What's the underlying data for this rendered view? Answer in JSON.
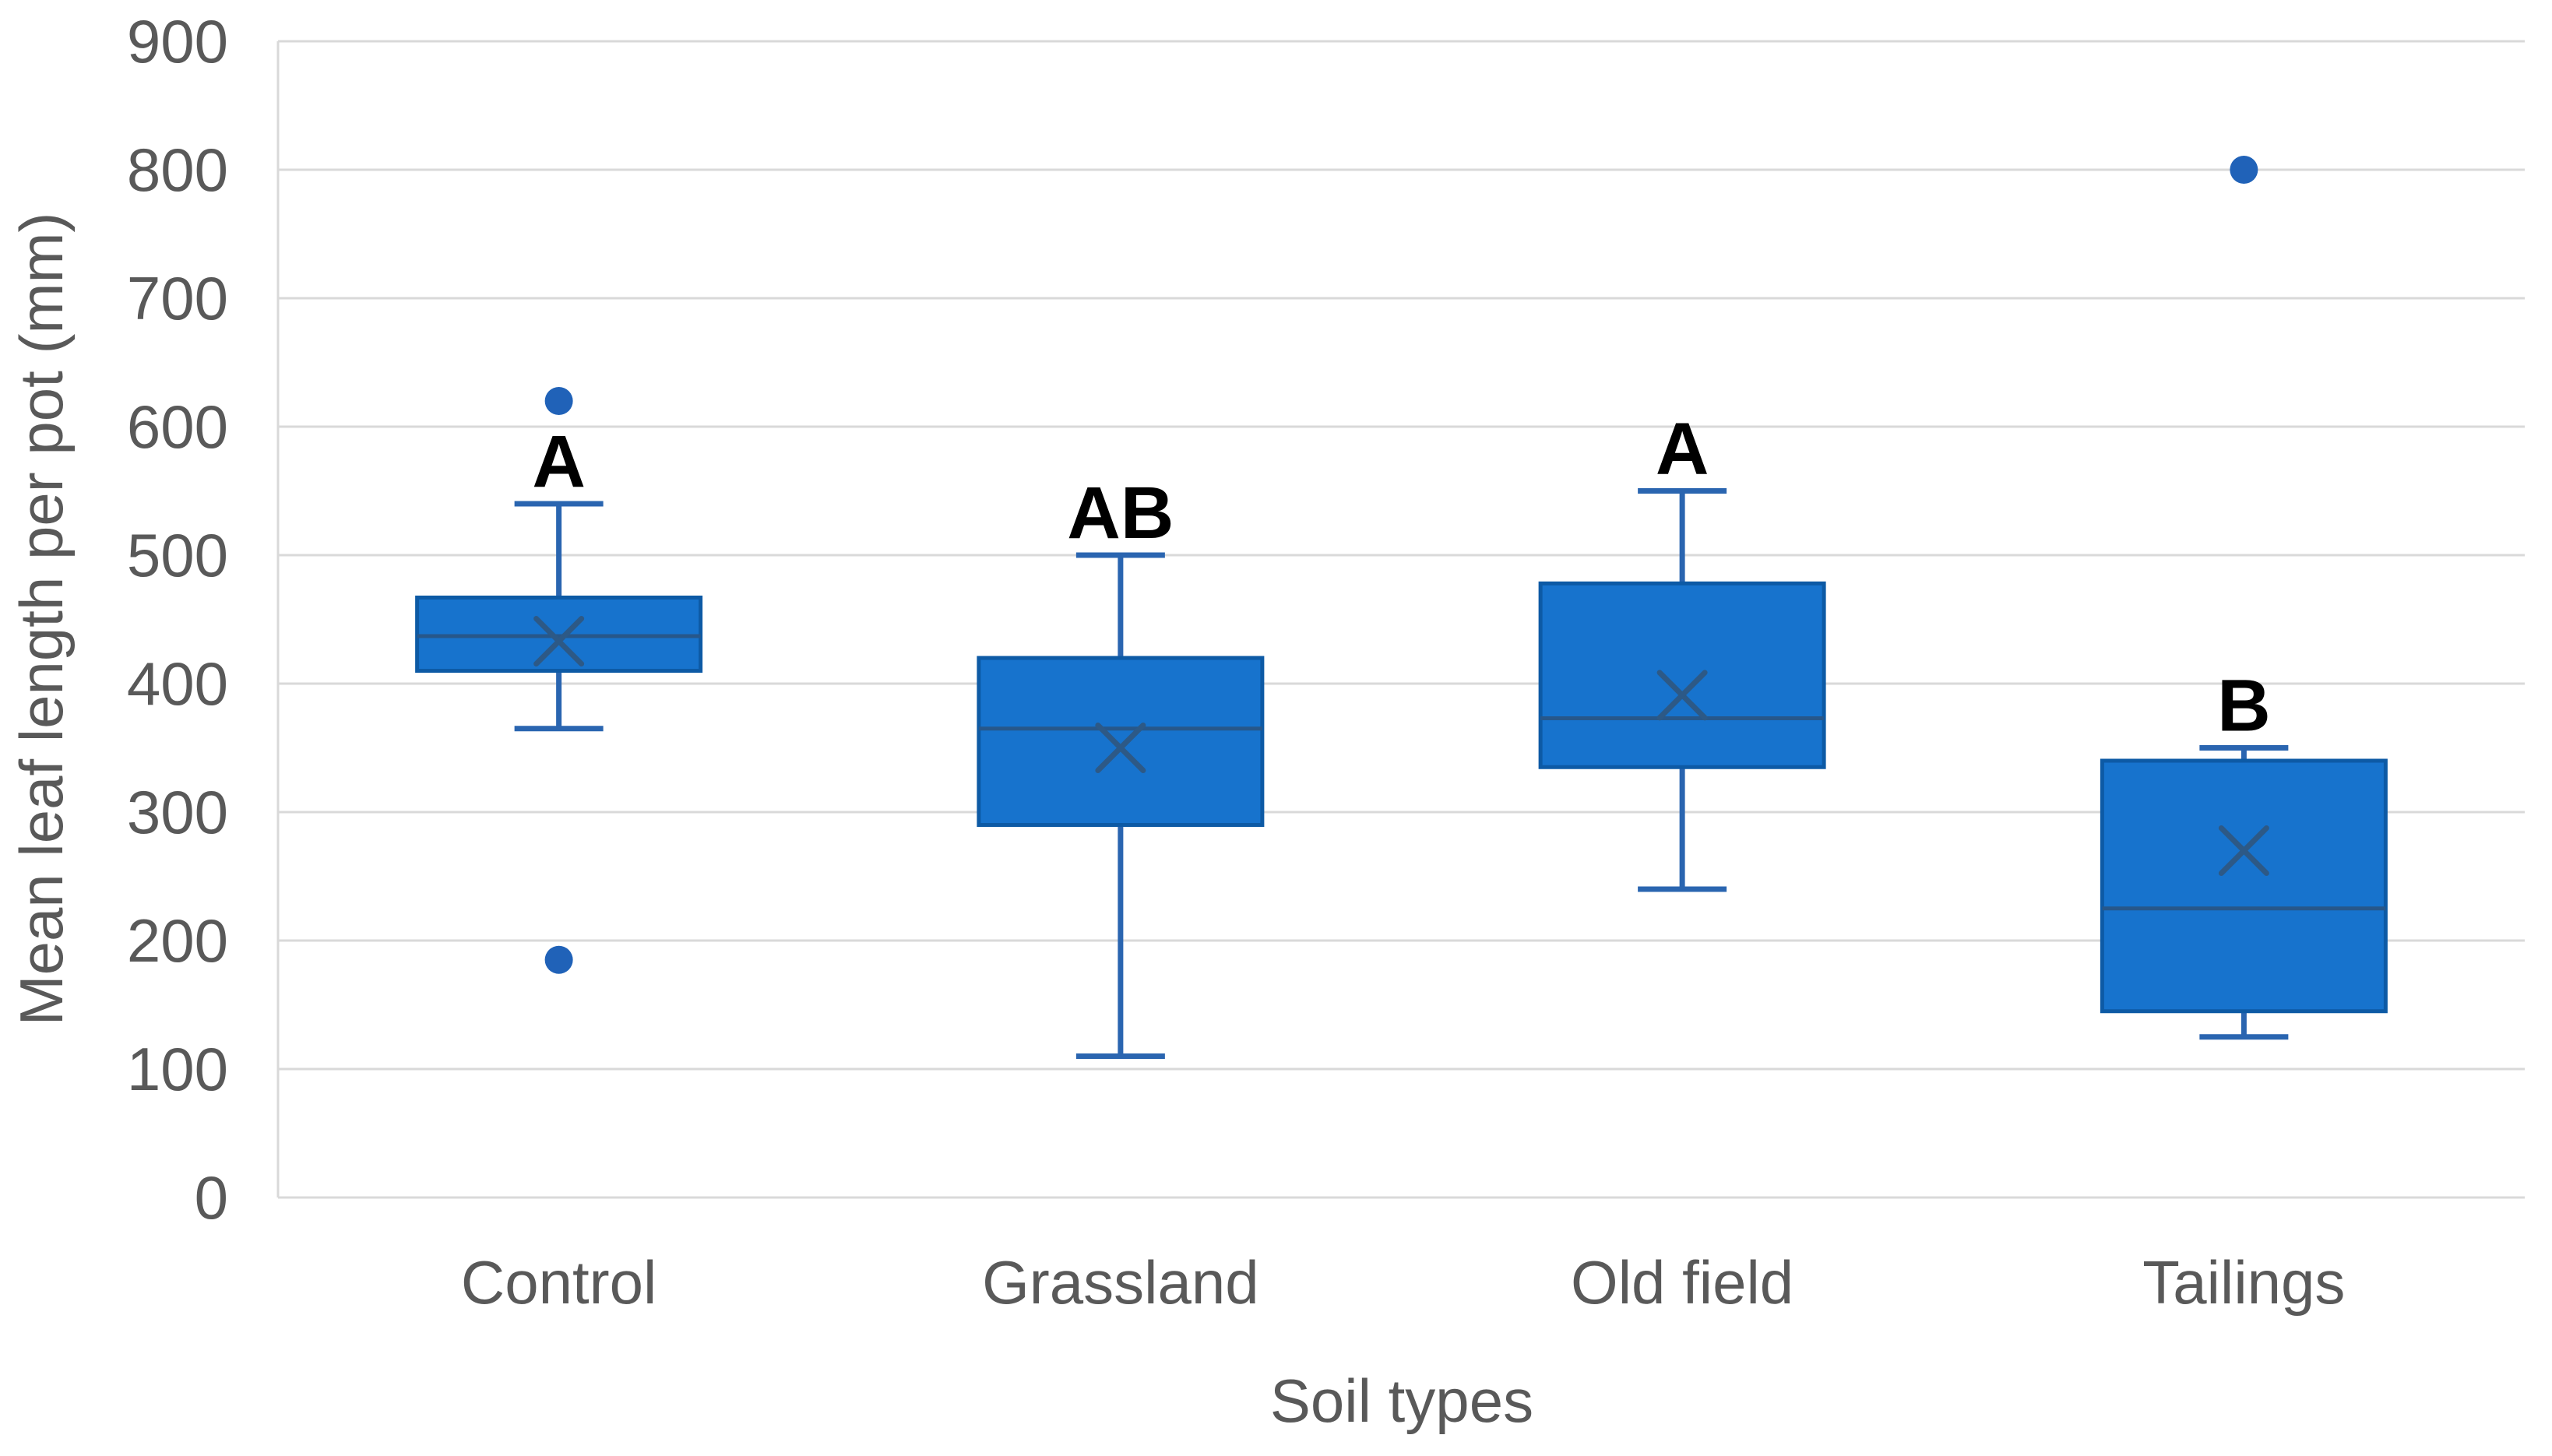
{
  "chart_data": {
    "type": "boxplot",
    "title": "",
    "xlabel": "Soil types",
    "ylabel": "Mean leaf length per pot  (mm)",
    "ylim": [
      0,
      900
    ],
    "ytick_step": 100,
    "ytick_labels": [
      "0",
      "100",
      "200",
      "300",
      "400",
      "500",
      "600",
      "700",
      "800",
      "900"
    ],
    "grid": true,
    "legend": false,
    "categories": [
      "Control",
      "Grassland",
      "Old field",
      "Tailings"
    ],
    "series": [
      {
        "category": "Control",
        "significance_letter": "A",
        "whisker_low": 365,
        "q1": 410,
        "median": 437,
        "q3": 467,
        "whisker_high": 540,
        "mean": 433,
        "outliers": [
          620,
          185
        ]
      },
      {
        "category": "Grassland",
        "significance_letter": "AB",
        "whisker_low": 110,
        "q1": 290,
        "median": 365,
        "q3": 420,
        "whisker_high": 500,
        "mean": 350,
        "outliers": []
      },
      {
        "category": "Old field",
        "significance_letter": "A",
        "whisker_low": 240,
        "q1": 335,
        "median": 373,
        "q3": 478,
        "whisker_high": 550,
        "mean": 391,
        "outliers": []
      },
      {
        "category": "Tailings",
        "significance_letter": "B",
        "whisker_low": 125,
        "q1": 145,
        "median": 225,
        "q3": 340,
        "whisker_high": 350,
        "mean": 270,
        "outliers": [
          800
        ]
      }
    ]
  },
  "colors": {
    "background": "#FFFFFF",
    "box_fill": "#1773CD",
    "box_border": "#0D5AA5",
    "median_line": "#27578A",
    "mean_marker": "#2D5986",
    "whisker": "#2A65B0",
    "outlier": "#2062B8",
    "gridline": "#D9D9D9",
    "axis_line": "#D9D9D9",
    "axis_text": "#595959",
    "significance_text": "#000000"
  }
}
